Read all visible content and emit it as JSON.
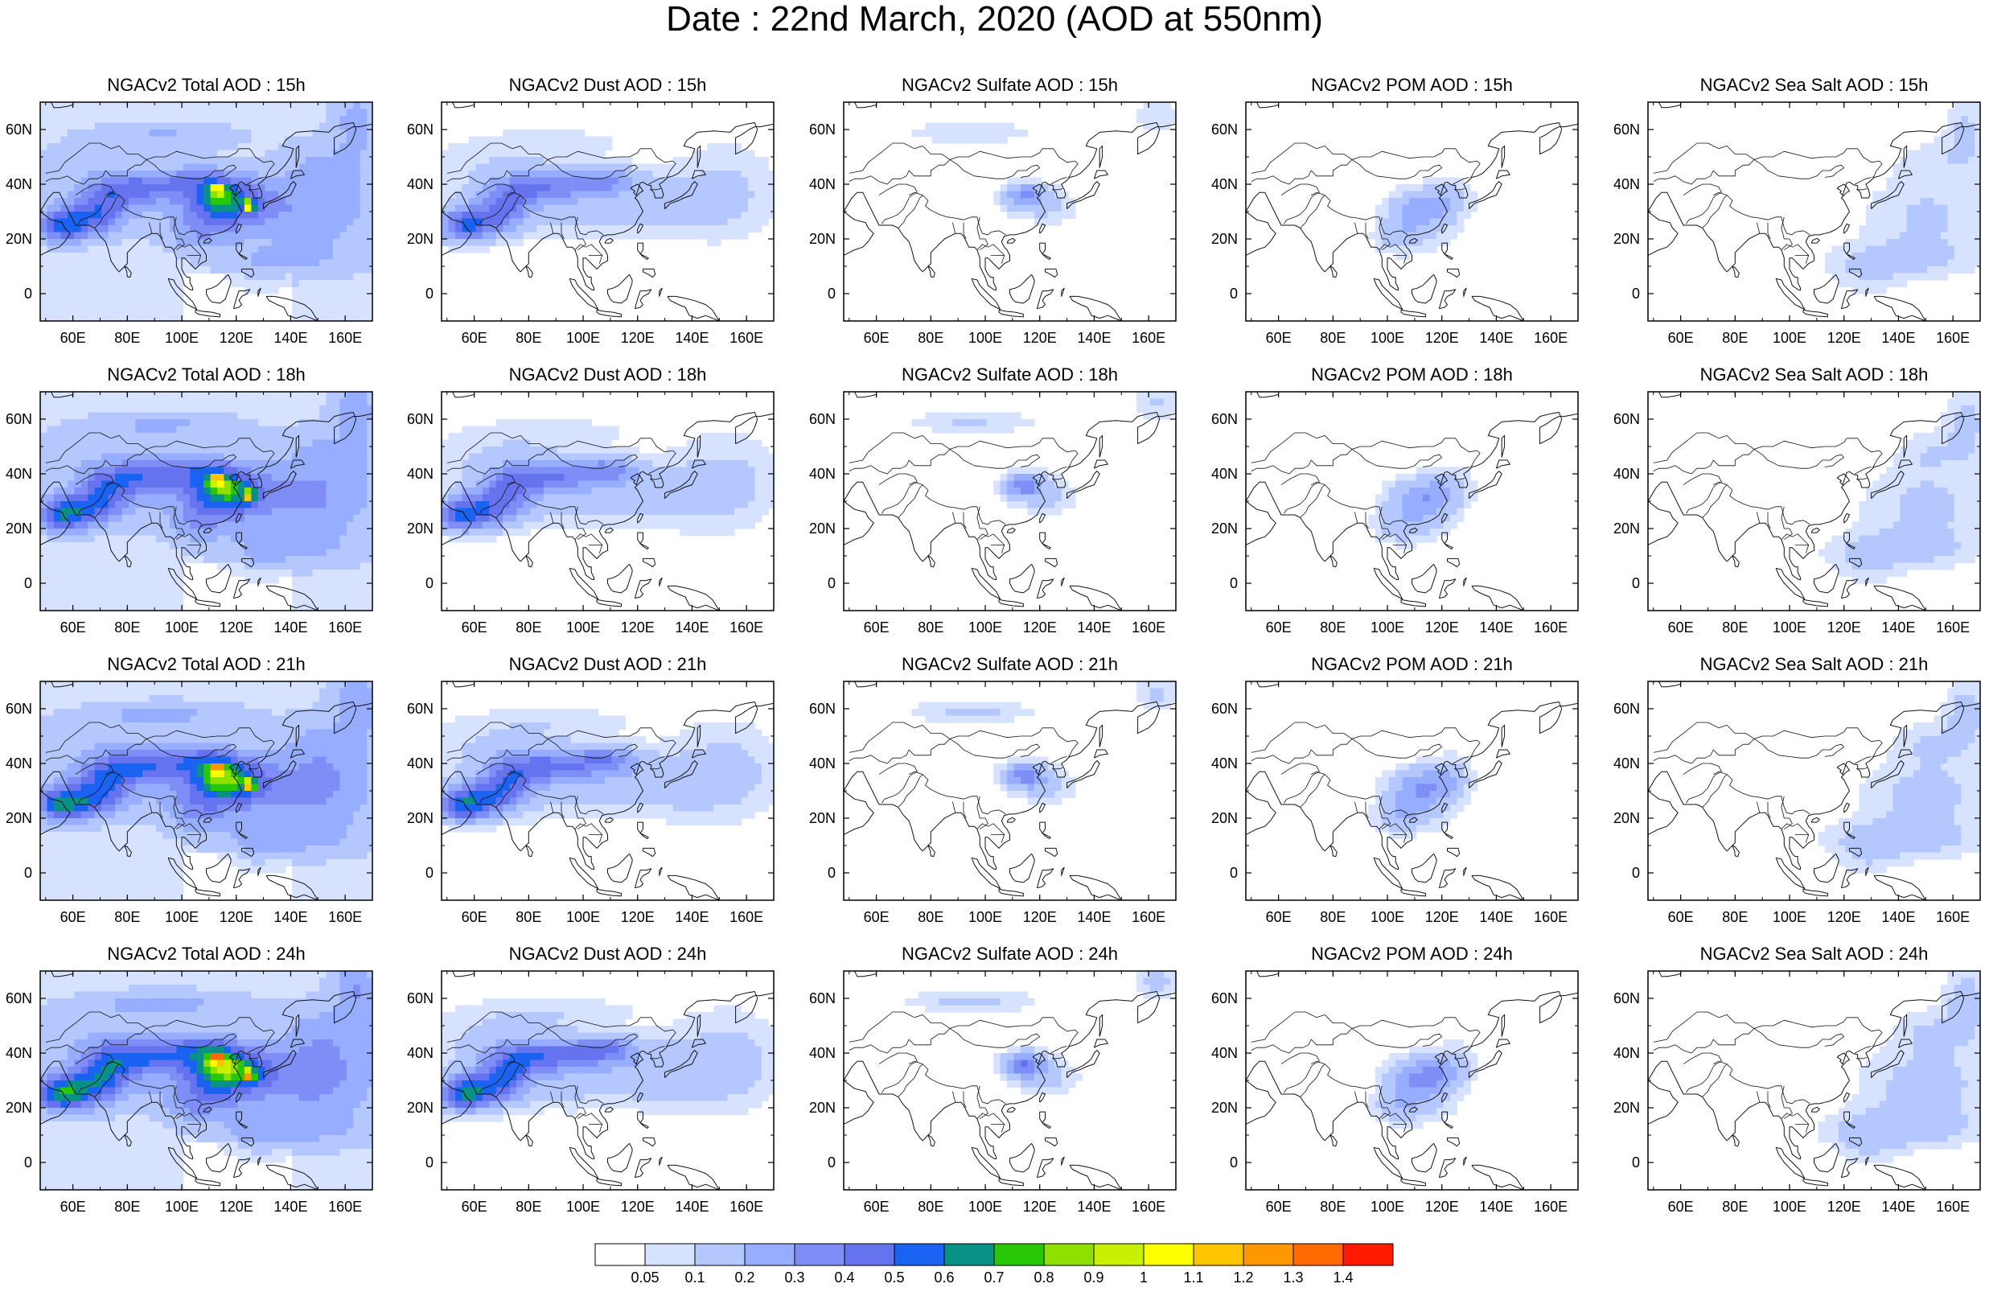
{
  "figure": {
    "title": "Date : 22nd March, 2020 (AOD at 550nm)",
    "lon_ticks": [
      "60E",
      "80E",
      "100E",
      "120E",
      "140E",
      "160E"
    ],
    "lat_ticks": [
      "60N",
      "40N",
      "20N",
      "0"
    ],
    "extent": {
      "lon": [
        48,
        170
      ],
      "lat": [
        -10,
        70
      ]
    }
  },
  "colorbar": {
    "labels": [
      "0.05",
      "0.1",
      "0.2",
      "0.3",
      "0.4",
      "0.5",
      "0.6",
      "0.7",
      "0.8",
      "0.9",
      "1",
      "1.1",
      "1.2",
      "1.3",
      "1.4"
    ],
    "colors": [
      "#ffffff",
      "#d6e2ff",
      "#b4c8ff",
      "#97adff",
      "#7f8ef7",
      "#6673ef",
      "#1a62f2",
      "#0a9185",
      "#28c809",
      "#8de000",
      "#c8f000",
      "#ffff00",
      "#ffc400",
      "#ff9800",
      "#ff6a00",
      "#ff1a00"
    ]
  },
  "panels": [
    {
      "title": "NGACv2 Total AOD : 15h",
      "species": "total",
      "hour": 15
    },
    {
      "title": "NGACv2 Dust AOD : 15h",
      "species": "dust",
      "hour": 15
    },
    {
      "title": "NGACv2 Sulfate AOD : 15h",
      "species": "sulfate",
      "hour": 15
    },
    {
      "title": "NGACv2 POM AOD : 15h",
      "species": "pom",
      "hour": 15
    },
    {
      "title": "NGACv2 Sea Salt AOD : 15h",
      "species": "seasalt",
      "hour": 15
    },
    {
      "title": "NGACv2 Total AOD : 18h",
      "species": "total",
      "hour": 18
    },
    {
      "title": "NGACv2 Dust AOD : 18h",
      "species": "dust",
      "hour": 18
    },
    {
      "title": "NGACv2 Sulfate AOD : 18h",
      "species": "sulfate",
      "hour": 18
    },
    {
      "title": "NGACv2 POM AOD : 18h",
      "species": "pom",
      "hour": 18
    },
    {
      "title": "NGACv2 Sea Salt AOD : 18h",
      "species": "seasalt",
      "hour": 18
    },
    {
      "title": "NGACv2 Total AOD : 21h",
      "species": "total",
      "hour": 21
    },
    {
      "title": "NGACv2 Dust AOD : 21h",
      "species": "dust",
      "hour": 21
    },
    {
      "title": "NGACv2 Sulfate AOD : 21h",
      "species": "sulfate",
      "hour": 21
    },
    {
      "title": "NGACv2 POM AOD : 21h",
      "species": "pom",
      "hour": 21
    },
    {
      "title": "NGACv2 Sea Salt AOD : 21h",
      "species": "seasalt",
      "hour": 21
    },
    {
      "title": "NGACv2 Total AOD : 24h",
      "species": "total",
      "hour": 24
    },
    {
      "title": "NGACv2 Dust AOD : 24h",
      "species": "dust",
      "hour": 24
    },
    {
      "title": "NGACv2 Sulfate AOD : 24h",
      "species": "sulfate",
      "hour": 24
    },
    {
      "title": "NGACv2 POM AOD : 24h",
      "species": "pom",
      "hour": 24
    },
    {
      "title": "NGACv2 Sea Salt  AOD : 24h",
      "species": "seasalt",
      "hour": 24
    }
  ]
}
